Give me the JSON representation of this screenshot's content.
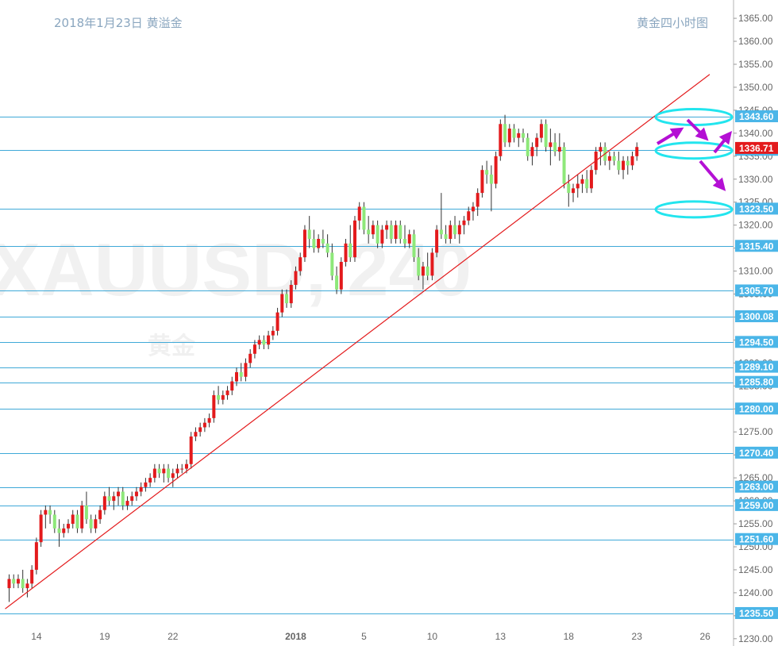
{
  "header": {
    "date_label": "2018年1月23日 黄溢金",
    "chart_title": "黄金四小时图"
  },
  "watermark": {
    "symbol": "XAUUSD, 240",
    "name": "黄金"
  },
  "colors": {
    "up": "#e31a1c",
    "down": "#8ee87a",
    "level_line": "#3fa9d8",
    "level_tag": "#4bb6e8",
    "current_tag": "#e31a1c",
    "trendline": "#e31a1c",
    "ellipse": "#22e5ee",
    "arrow": "#b410d4",
    "axis_text": "#666666"
  },
  "chart_data": {
    "type": "candlestick",
    "timeframe": "4H",
    "ylim": [
      1228.5,
      1367
    ],
    "y_ticks": [
      1230,
      1235,
      1240,
      1245,
      1250,
      1255,
      1260,
      1265,
      1270,
      1275,
      1280,
      1285,
      1290,
      1295,
      1300,
      1305,
      1310,
      1315,
      1320,
      1325,
      1330,
      1335,
      1340,
      1345,
      1350,
      1355,
      1360,
      1365
    ],
    "y_tick_labels": [
      "1230.00",
      "1235.00",
      "1240.00",
      "1245.00",
      "1250.00",
      "1255.00",
      "1260.00",
      "1265.00",
      "1270.00",
      "1275.00",
      "1280.00",
      "1285.00",
      "1290.00",
      "1295.00",
      "1300.00",
      "1305.00",
      "1310.00",
      "1315.00",
      "1320.00",
      "1325.00",
      "1330.00",
      "1335.00",
      "1340.00",
      "1345.00",
      "1350.00",
      "1355.00",
      "1360.00",
      "1365.00"
    ],
    "x_ticks": [
      "14",
      "19",
      "22",
      "2018",
      "5",
      "10",
      "13",
      "18",
      "23",
      "26"
    ],
    "x_tick_index": [
      6,
      21,
      36,
      63,
      78,
      93,
      108,
      123,
      138,
      153
    ],
    "horizontal_levels": [
      1343.6,
      1336.3,
      1323.5,
      1315.4,
      1305.7,
      1300.08,
      1294.5,
      1289.1,
      1285.8,
      1280.0,
      1270.4,
      1263.0,
      1259.0,
      1251.6,
      1235.5
    ],
    "horizontal_level_labels": [
      "1343.60",
      "1336.30",
      "1323.50",
      "1315.40",
      "1305.70",
      "1300.08",
      "1294.50",
      "1289.10",
      "1285.80",
      "1280.00",
      "1270.40",
      "1263.00",
      "1259.00",
      "1251.60",
      "1235.50"
    ],
    "current_price": 1336.71,
    "current_price_label": "1336.71",
    "trendline": {
      "from": [
        0,
        1236.5
      ],
      "to": [
        154,
        1352.8
      ]
    },
    "target_zones": [
      1343.6,
      1336.3,
      1323.5
    ],
    "candles": [
      [
        1241,
        1244,
        1238,
        1243
      ],
      [
        1243,
        1244,
        1241,
        1242
      ],
      [
        1242,
        1244,
        1241,
        1243
      ],
      [
        1243,
        1245,
        1240,
        1241
      ],
      [
        1241,
        1243,
        1239,
        1242
      ],
      [
        1242,
        1246,
        1241,
        1245
      ],
      [
        1245,
        1252,
        1244,
        1251
      ],
      [
        1251,
        1258,
        1250,
        1257
      ],
      [
        1257,
        1259,
        1254,
        1258
      ],
      [
        1258,
        1259,
        1255,
        1257
      ],
      [
        1257,
        1258,
        1253,
        1254
      ],
      [
        1254,
        1256,
        1250,
        1253
      ],
      [
        1253,
        1255,
        1252,
        1254
      ],
      [
        1254,
        1256,
        1253,
        1255
      ],
      [
        1255,
        1258,
        1254,
        1257
      ],
      [
        1257,
        1258,
        1253,
        1254
      ],
      [
        1254,
        1260,
        1253,
        1259
      ],
      [
        1259,
        1262,
        1255,
        1256
      ],
      [
        1256,
        1257,
        1253,
        1254
      ],
      [
        1254,
        1257,
        1253,
        1256
      ],
      [
        1256,
        1259,
        1255,
        1258
      ],
      [
        1258,
        1262,
        1257,
        1261
      ],
      [
        1261,
        1263,
        1259,
        1260
      ],
      [
        1260,
        1262,
        1258,
        1261
      ],
      [
        1261,
        1263,
        1259,
        1262
      ],
      [
        1262,
        1263,
        1258,
        1259
      ],
      [
        1259,
        1261,
        1258,
        1260
      ],
      [
        1260,
        1262,
        1259,
        1261
      ],
      [
        1261,
        1263,
        1260,
        1262
      ],
      [
        1262,
        1264,
        1261,
        1263
      ],
      [
        1263,
        1265,
        1262,
        1264
      ],
      [
        1264,
        1266,
        1263,
        1265
      ],
      [
        1265,
        1268,
        1264,
        1267
      ],
      [
        1267,
        1268,
        1265,
        1266
      ],
      [
        1266,
        1268,
        1264,
        1267
      ],
      [
        1267,
        1268,
        1264,
        1265
      ],
      [
        1265,
        1267,
        1263,
        1266
      ],
      [
        1266,
        1268,
        1265,
        1267
      ],
      [
        1267,
        1268,
        1266,
        1267
      ],
      [
        1267,
        1269,
        1266,
        1268
      ],
      [
        1268,
        1275,
        1267,
        1274
      ],
      [
        1274,
        1276,
        1273,
        1275
      ],
      [
        1275,
        1277,
        1274,
        1276
      ],
      [
        1276,
        1278,
        1275,
        1277
      ],
      [
        1277,
        1279,
        1276,
        1278
      ],
      [
        1278,
        1284,
        1277,
        1283
      ],
      [
        1283,
        1285,
        1281,
        1282
      ],
      [
        1282,
        1284,
        1281,
        1283
      ],
      [
        1283,
        1285,
        1282,
        1284
      ],
      [
        1284,
        1287,
        1283,
        1286
      ],
      [
        1286,
        1289,
        1285,
        1288
      ],
      [
        1288,
        1290,
        1286,
        1287
      ],
      [
        1287,
        1291,
        1286,
        1290
      ],
      [
        1290,
        1293,
        1289,
        1292
      ],
      [
        1292,
        1295,
        1291,
        1294
      ],
      [
        1294,
        1296,
        1293,
        1295
      ],
      [
        1295,
        1296,
        1293,
        1294
      ],
      [
        1294,
        1297,
        1293,
        1296
      ],
      [
        1296,
        1298,
        1295,
        1297
      ],
      [
        1297,
        1302,
        1296,
        1301
      ],
      [
        1301,
        1306,
        1300,
        1305
      ],
      [
        1305,
        1306,
        1302,
        1303
      ],
      [
        1303,
        1308,
        1302,
        1307
      ],
      [
        1307,
        1311,
        1306,
        1310
      ],
      [
        1310,
        1314,
        1309,
        1313
      ],
      [
        1313,
        1320,
        1312,
        1319
      ],
      [
        1319,
        1322,
        1315,
        1317
      ],
      [
        1317,
        1319,
        1314,
        1315
      ],
      [
        1315,
        1318,
        1314,
        1317
      ],
      [
        1317,
        1319,
        1315,
        1316
      ],
      [
        1316,
        1318,
        1313,
        1314
      ],
      [
        1314,
        1316,
        1308,
        1309
      ],
      [
        1309,
        1311,
        1305,
        1306
      ],
      [
        1306,
        1313,
        1305,
        1312
      ],
      [
        1312,
        1317,
        1311,
        1316
      ],
      [
        1316,
        1320,
        1312,
        1313
      ],
      [
        1313,
        1322,
        1312,
        1321
      ],
      [
        1321,
        1325,
        1319,
        1324
      ],
      [
        1324,
        1325,
        1318,
        1319
      ],
      [
        1319,
        1322,
        1316,
        1318
      ],
      [
        1318,
        1321,
        1317,
        1320
      ],
      [
        1320,
        1321,
        1315,
        1316
      ],
      [
        1316,
        1320,
        1315,
        1319
      ],
      [
        1319,
        1321,
        1317,
        1320
      ],
      [
        1320,
        1321,
        1316,
        1317
      ],
      [
        1317,
        1321,
        1316,
        1320
      ],
      [
        1320,
        1321,
        1316,
        1317
      ],
      [
        1317,
        1320,
        1315,
        1316
      ],
      [
        1316,
        1319,
        1315,
        1318
      ],
      [
        1318,
        1319,
        1312,
        1313
      ],
      [
        1313,
        1315,
        1308,
        1309
      ],
      [
        1309,
        1312,
        1306,
        1311
      ],
      [
        1311,
        1314,
        1308,
        1309
      ],
      [
        1309,
        1315,
        1308,
        1314
      ],
      [
        1314,
        1320,
        1313,
        1319
      ],
      [
        1319,
        1327,
        1317,
        1318
      ],
      [
        1318,
        1320,
        1316,
        1317
      ],
      [
        1317,
        1321,
        1316,
        1320
      ],
      [
        1320,
        1322,
        1317,
        1318
      ],
      [
        1318,
        1321,
        1316,
        1320
      ],
      [
        1320,
        1322,
        1318,
        1321
      ],
      [
        1321,
        1324,
        1320,
        1323
      ],
      [
        1323,
        1325,
        1321,
        1324
      ],
      [
        1324,
        1328,
        1322,
        1327
      ],
      [
        1327,
        1333,
        1326,
        1332
      ],
      [
        1332,
        1334,
        1329,
        1331
      ],
      [
        1331,
        1333,
        1323,
        1329
      ],
      [
        1329,
        1336,
        1328,
        1335
      ],
      [
        1335,
        1343,
        1334,
        1342
      ],
      [
        1342,
        1344,
        1337,
        1338
      ],
      [
        1338,
        1342,
        1337,
        1341
      ],
      [
        1341,
        1342,
        1338,
        1339
      ],
      [
        1339,
        1341,
        1337,
        1340
      ],
      [
        1340,
        1341,
        1338,
        1339
      ],
      [
        1339,
        1340,
        1334,
        1335
      ],
      [
        1335,
        1338,
        1333,
        1337
      ],
      [
        1337,
        1340,
        1335,
        1339
      ],
      [
        1339,
        1343,
        1338,
        1342
      ],
      [
        1342,
        1343,
        1336,
        1337
      ],
      [
        1337,
        1341,
        1333,
        1338
      ],
      [
        1338,
        1340,
        1335,
        1336
      ],
      [
        1336,
        1340,
        1334,
        1337
      ],
      [
        1337,
        1338,
        1328,
        1329
      ],
      [
        1329,
        1331,
        1324,
        1327
      ],
      [
        1327,
        1329,
        1325,
        1328
      ],
      [
        1328,
        1331,
        1326,
        1329
      ],
      [
        1329,
        1331,
        1327,
        1330
      ],
      [
        1330,
        1332,
        1327,
        1328
      ],
      [
        1328,
        1333,
        1327,
        1332
      ],
      [
        1332,
        1337,
        1331,
        1336
      ],
      [
        1336,
        1338,
        1333,
        1337
      ],
      [
        1337,
        1338,
        1333,
        1334
      ],
      [
        1334,
        1336,
        1332,
        1335
      ],
      [
        1335,
        1336,
        1333,
        1334
      ],
      [
        1334,
        1336,
        1331,
        1332
      ],
      [
        1332,
        1335,
        1330,
        1334
      ],
      [
        1334,
        1335,
        1331,
        1333
      ],
      [
        1333,
        1336,
        1332,
        1335
      ],
      [
        1335,
        1338,
        1334,
        1337
      ]
    ]
  }
}
